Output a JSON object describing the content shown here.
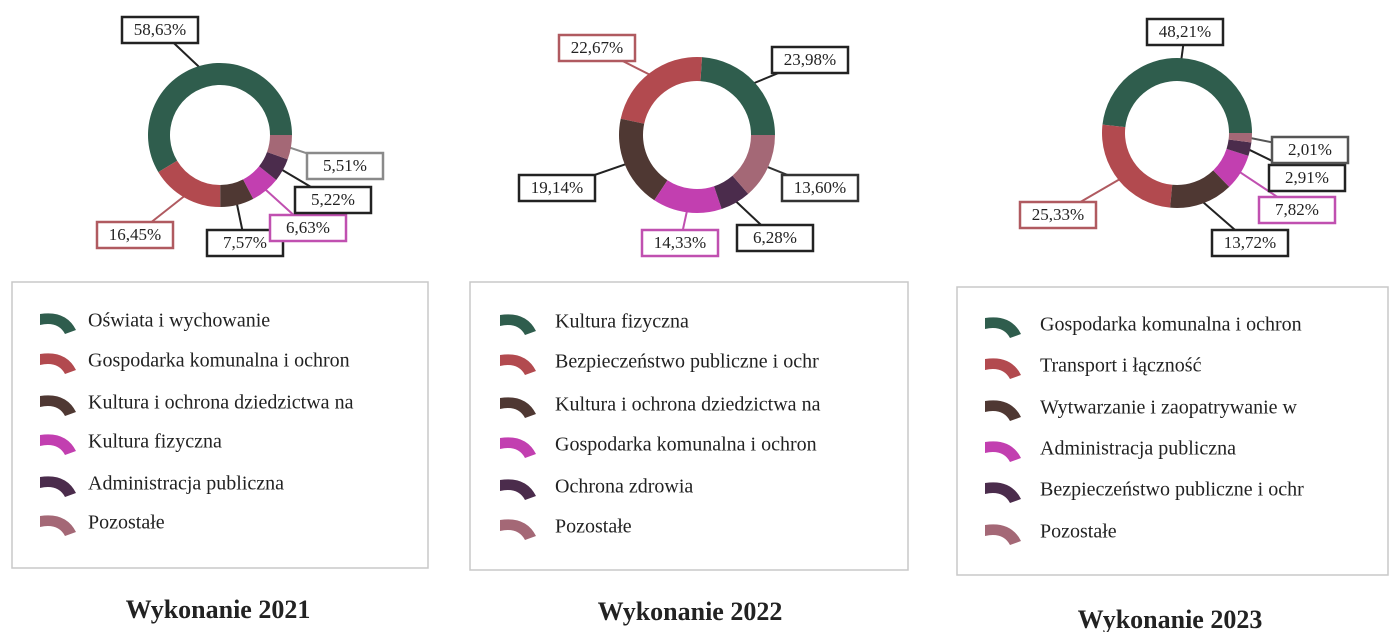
{
  "chart_data": [
    {
      "type": "donut",
      "title": "Wykonanie 2021",
      "categories": [
        "Oświata i wychowanie",
        "Gospodarka komunalna i ochron",
        "Kultura i ochrona dziedzictwa na",
        "Kultura fizyczna",
        "Administracja publiczna",
        "Pozostałe"
      ],
      "values": [
        58.63,
        16.45,
        7.57,
        6.63,
        5.22,
        5.51
      ],
      "value_labels": [
        "58,63%",
        "16,45%",
        "7,57%",
        "6,63%",
        "5,22%",
        "5,51%"
      ],
      "colors": [
        "#2f5d4d",
        "#b24a4f",
        "#4f3833",
        "#c23fb0",
        "#4b2c4c",
        "#a46876"
      ],
      "label_colors": [
        "#222222",
        "#b05a60",
        "#222222",
        "#c050b0",
        "#222222",
        "#8a8a8a"
      ]
    },
    {
      "type": "donut",
      "title": "Wykonanie 2022",
      "categories": [
        "Kultura fizyczna",
        "Bezpieczeństwo publiczne i ochr",
        "Kultura i ochrona dziedzictwa na",
        "Gospodarka komunalna i ochron",
        "Ochrona zdrowia",
        "Pozostałe"
      ],
      "values": [
        23.98,
        22.67,
        19.14,
        14.33,
        6.28,
        13.6
      ],
      "value_labels": [
        "23,98%",
        "22,67%",
        "19,14%",
        "14,33%",
        "6,28%",
        "13,60%"
      ],
      "colors": [
        "#2f5d4d",
        "#b24a4f",
        "#4f3833",
        "#c23fb0",
        "#4b2c4c",
        "#a46876"
      ],
      "label_colors": [
        "#222222",
        "#b05a60",
        "#222222",
        "#c050b0",
        "#222222",
        "#333333"
      ]
    },
    {
      "type": "donut",
      "title": "Wykonanie 2023",
      "categories": [
        "Gospodarka komunalna i ochron",
        "Transport i łączność",
        "Wytwarzanie i zaopatrywanie w",
        "Administracja publiczna",
        "Bezpieczeństwo publiczne i ochr",
        "Pozostałe"
      ],
      "values": [
        48.21,
        25.33,
        13.72,
        7.82,
        2.91,
        2.01
      ],
      "value_labels": [
        "48,21%",
        "25,33%",
        "13,72%",
        "7,82%",
        "2,91%",
        "2,01%"
      ],
      "colors": [
        "#2f5d4d",
        "#b24a4f",
        "#4f3833",
        "#c23fb0",
        "#4b2c4c",
        "#a46876"
      ],
      "label_colors": [
        "#222222",
        "#b05a60",
        "#222222",
        "#c050b0",
        "#222222",
        "#555555"
      ]
    }
  ]
}
